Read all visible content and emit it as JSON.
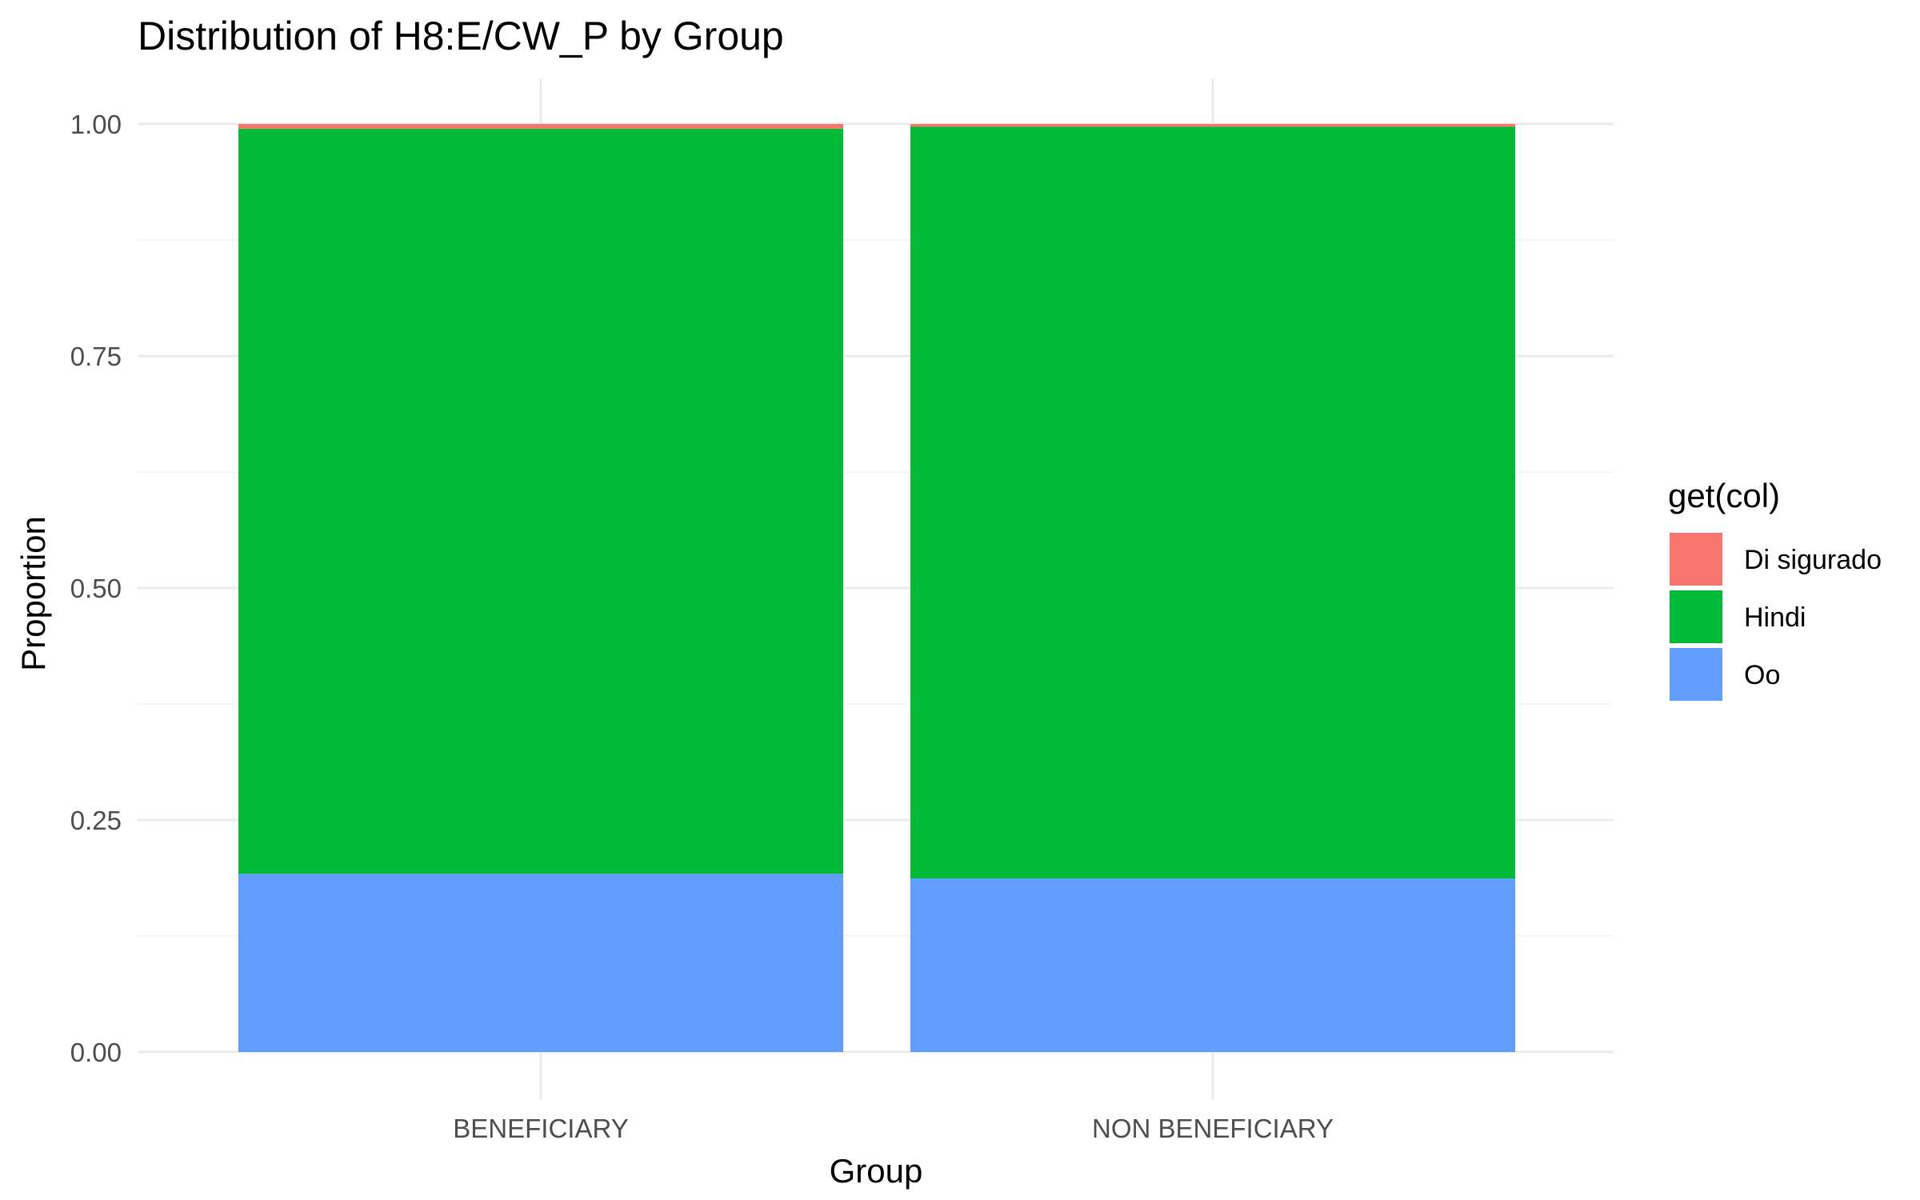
{
  "chart_data": {
    "type": "bar",
    "stacked": true,
    "title": "Distribution of H8:E/CW_P by Group",
    "xlabel": "Group",
    "ylabel": "Proportion",
    "ylim": [
      0,
      1
    ],
    "yticks": [
      "0.00",
      "0.25",
      "0.50",
      "0.75",
      "1.00"
    ],
    "categories": [
      "BENEFICIARY",
      "NON BENEFICIARY"
    ],
    "legend_title": "get(col)",
    "legend_position": "right",
    "grid": true,
    "series": [
      {
        "name": "Oo",
        "color": "#619CFF",
        "values": [
          0.192,
          0.187
        ]
      },
      {
        "name": "Hindi",
        "color": "#00BA38",
        "values": [
          0.803,
          0.81
        ]
      },
      {
        "name": "Di sigurado",
        "color": "#F8766D",
        "values": [
          0.005,
          0.003
        ]
      }
    ],
    "legend_order": [
      "Di sigurado",
      "Hindi",
      "Oo"
    ]
  }
}
